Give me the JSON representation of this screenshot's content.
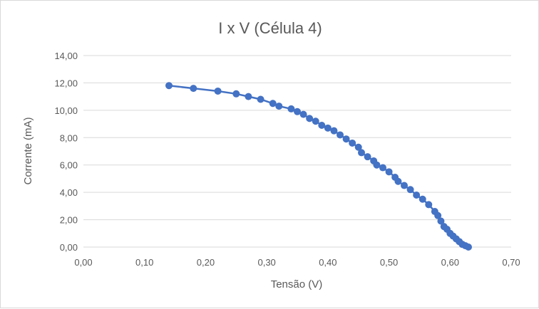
{
  "chart_data": {
    "type": "line",
    "title": "I x V (Célula 4)",
    "xlabel": "Tensão (V)",
    "ylabel": "Corrente (mA)",
    "xlim": [
      0,
      0.7
    ],
    "ylim": [
      0,
      14
    ],
    "x_ticks": [
      "0,00",
      "0,10",
      "0,20",
      "0,30",
      "0,40",
      "0,50",
      "0,60",
      "0,70"
    ],
    "y_ticks": [
      "0,00",
      "2,00",
      "4,00",
      "6,00",
      "8,00",
      "10,00",
      "12,00",
      "14,00"
    ],
    "grid": "horizontal",
    "legend": "none",
    "series": [
      {
        "color": "#4472c4",
        "x": [
          0.14,
          0.18,
          0.22,
          0.25,
          0.27,
          0.29,
          0.31,
          0.32,
          0.34,
          0.35,
          0.36,
          0.37,
          0.38,
          0.39,
          0.4,
          0.41,
          0.42,
          0.43,
          0.44,
          0.45,
          0.455,
          0.465,
          0.475,
          0.48,
          0.49,
          0.5,
          0.51,
          0.515,
          0.525,
          0.535,
          0.545,
          0.555,
          0.565,
          0.575,
          0.58,
          0.585,
          0.59,
          0.595,
          0.6,
          0.605,
          0.61,
          0.615,
          0.62,
          0.625,
          0.63
        ],
        "y": [
          11.8,
          11.6,
          11.4,
          11.2,
          11.0,
          10.8,
          10.5,
          10.3,
          10.1,
          9.9,
          9.7,
          9.4,
          9.2,
          8.9,
          8.7,
          8.5,
          8.2,
          7.9,
          7.6,
          7.3,
          6.9,
          6.6,
          6.3,
          6.0,
          5.8,
          5.5,
          5.1,
          4.8,
          4.5,
          4.2,
          3.8,
          3.5,
          3.1,
          2.6,
          2.3,
          1.9,
          1.5,
          1.3,
          1.0,
          0.8,
          0.6,
          0.4,
          0.2,
          0.1,
          0.0
        ]
      }
    ]
  }
}
